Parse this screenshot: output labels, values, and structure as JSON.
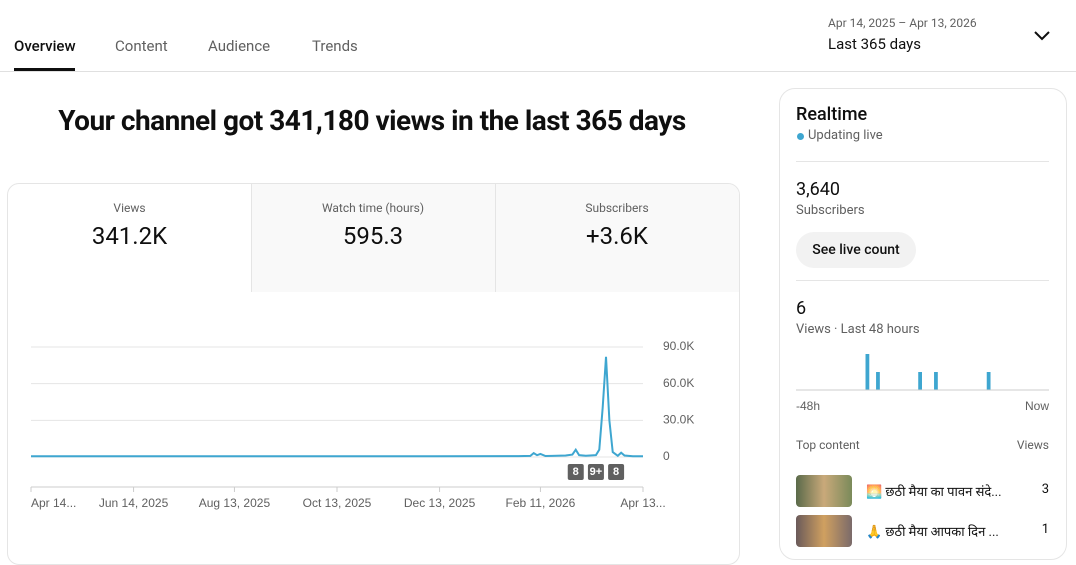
{
  "tabs": [
    "Overview",
    "Content",
    "Audience",
    "Trends"
  ],
  "date_range": {
    "range": "Apr 14, 2025 – Apr 13, 2026",
    "label": "Last 365 days"
  },
  "headline": "Your channel got 341,180 views in the last 365 days",
  "metrics": [
    {
      "label": "Views",
      "value": "341.2K"
    },
    {
      "label": "Watch time (hours)",
      "value": "595.3"
    },
    {
      "label": "Subscribers",
      "value": "+3.6K"
    }
  ],
  "chart_data": {
    "type": "line",
    "series": [
      {
        "name": "Views",
        "color": "#3ea6d0",
        "x": [
          0,
          60,
          120,
          180,
          240,
          290,
          297,
          299,
          301,
          303,
          306,
          310,
          318,
          322,
          324,
          326,
          330,
          336,
          338,
          340,
          342,
          344,
          346,
          349,
          351,
          353,
          358,
          364
        ],
        "values": [
          600,
          600,
          600,
          600,
          600,
          700,
          900,
          3200,
          1500,
          2500,
          800,
          900,
          1200,
          2000,
          6000,
          1500,
          1000,
          1500,
          6000,
          40000,
          82000,
          30000,
          4000,
          1000,
          3500,
          1200,
          600,
          600
        ]
      }
    ],
    "xlim": [
      0,
      364
    ],
    "xticks": [
      {
        "value": 0,
        "label": "Apr 14..."
      },
      {
        "value": 61,
        "label": "Jun 14, 2025"
      },
      {
        "value": 121,
        "label": "Aug 13, 2025"
      },
      {
        "value": 182,
        "label": "Oct 13, 2025"
      },
      {
        "value": 243,
        "label": "Dec 13, 2025"
      },
      {
        "value": 303,
        "label": "Feb 11, 2026"
      },
      {
        "value": 364,
        "label": "Apr 13..."
      }
    ],
    "ylim": [
      0,
      90000
    ],
    "yticks": [
      0,
      {
        "value": 30000,
        "label": "30.0K"
      },
      {
        "value": 60000,
        "label": "60.0K"
      },
      {
        "value": 90000,
        "label": "90.0K"
      }
    ],
    "grid": true,
    "annotations": [
      {
        "x": 324,
        "label": "8"
      },
      {
        "x": 336,
        "label": "9+"
      },
      {
        "x": 348,
        "label": "8"
      }
    ]
  },
  "realtime": {
    "title": "Realtime",
    "status": "Updating live",
    "subscribers": "3,640",
    "subscribers_label": "Subscribers",
    "button": "See live count",
    "views": "6",
    "views_label": "Views · Last 48 hours",
    "chart": {
      "type": "bar",
      "color": "#3ea6d0",
      "ylim": [
        0,
        2
      ],
      "values": [
        0,
        0,
        0,
        0,
        0,
        0,
        0,
        0,
        0,
        0,
        0,
        0,
        0,
        2,
        0,
        1,
        0,
        0,
        0,
        0,
        0,
        0,
        0,
        1,
        0,
        0,
        1,
        0,
        0,
        0,
        0,
        0,
        0,
        0,
        0,
        0,
        1,
        0,
        0,
        0,
        0,
        0,
        0,
        0,
        0,
        0,
        0,
        0
      ],
      "start_label": "-48h",
      "end_label": "Now"
    },
    "top_content_label": "Top content",
    "top_content_views_label": "Views",
    "top_content": [
      {
        "title": "🌅 छठी मैया का पावन संदे...",
        "views": 3
      },
      {
        "title": "🙏 छठी मैया आपका दिन ...",
        "views": 1
      }
    ]
  }
}
